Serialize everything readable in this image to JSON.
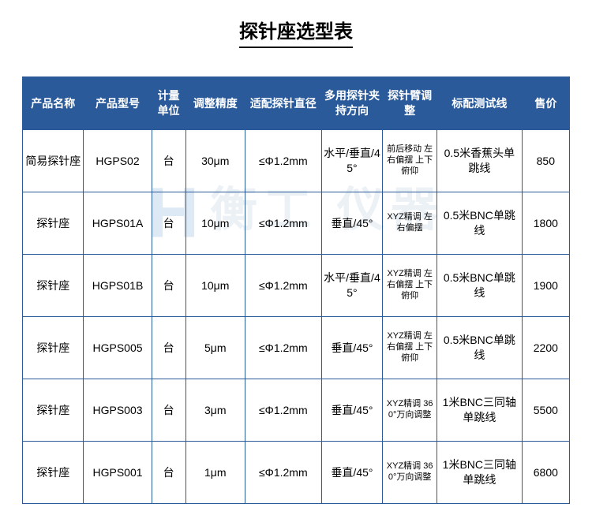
{
  "title": "探针座选型表",
  "watermark": "衡工 仪器",
  "watermark_logo": "H",
  "table": {
    "header_bg": "#2a5a9a",
    "header_fg": "#ffffff",
    "border_color": "#2a5a9a",
    "columns": [
      {
        "key": "name",
        "label": "产品名称"
      },
      {
        "key": "model",
        "label": "产品型号"
      },
      {
        "key": "unit",
        "label": "计量单位"
      },
      {
        "key": "prec",
        "label": "调整精度"
      },
      {
        "key": "dia",
        "label": "适配探针直径"
      },
      {
        "key": "dir",
        "label": "多用探针夹持方向"
      },
      {
        "key": "arm",
        "label": "探针臂调整"
      },
      {
        "key": "line",
        "label": "标配测试线"
      },
      {
        "key": "price",
        "label": "售价"
      }
    ],
    "rows": [
      {
        "name": "简易探针座",
        "model": "HGPS02",
        "unit": "台",
        "prec": "30μm",
        "dia": "≤Φ1.2mm",
        "dir": "水平/垂直/45°",
        "arm": "前后移动 左右偏摆 上下俯仰",
        "line": "0.5米香蕉头单跳线",
        "price": "850"
      },
      {
        "name": "探针座",
        "model": "HGPS01A",
        "unit": "台",
        "prec": "10μm",
        "dia": "≤Φ1.2mm",
        "dir": "垂直/45°",
        "arm": "XYZ精调 左右偏摆",
        "line": "0.5米BNC单跳线",
        "price": "1800"
      },
      {
        "name": "探针座",
        "model": "HGPS01B",
        "unit": "台",
        "prec": "10μm",
        "dia": "≤Φ1.2mm",
        "dir": "水平/垂直/45°",
        "arm": "XYZ精调 左右偏摆 上下俯仰",
        "line": "0.5米BNC单跳线",
        "price": "1900"
      },
      {
        "name": "探针座",
        "model": "HGPS005",
        "unit": "台",
        "prec": "5μm",
        "dia": "≤Φ1.2mm",
        "dir": "垂直/45°",
        "arm": "XYZ精调 左右偏摆 上下俯仰",
        "line": "0.5米BNC单跳线",
        "price": "2200"
      },
      {
        "name": "探针座",
        "model": "HGPS003",
        "unit": "台",
        "prec": "3μm",
        "dia": "≤Φ1.2mm",
        "dir": "垂直/45°",
        "arm": "XYZ精调 360°万向调整",
        "line": "1米BNC三同轴单跳线",
        "price": "5500"
      },
      {
        "name": "探针座",
        "model": "HGPS001",
        "unit": "台",
        "prec": "1μm",
        "dia": "≤Φ1.2mm",
        "dir": "垂直/45°",
        "arm": "XYZ精调 360°万向调整",
        "line": "1米BNC三同轴单跳线",
        "price": "6800"
      }
    ]
  }
}
